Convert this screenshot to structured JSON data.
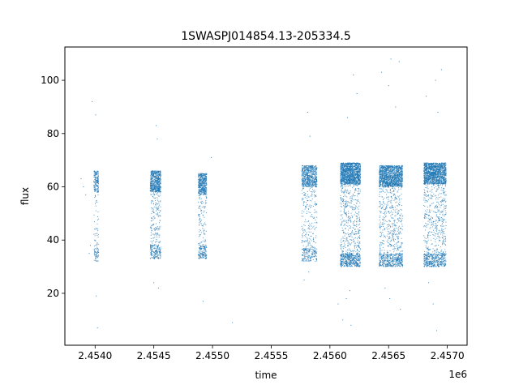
{
  "chart_data": {
    "type": "scatter",
    "title": "1SWASPJ014854.13-205334.5",
    "xlabel": "time",
    "ylabel": "flux",
    "x_offset_label": "1e6",
    "xlim": [
      2453742.5,
      2457168.5
    ],
    "ylim": [
      0.5,
      112.5
    ],
    "x_ticks": [
      2454000,
      2454500,
      2455000,
      2455500,
      2456000,
      2456500,
      2457000
    ],
    "x_tick_labels": [
      "2.4540",
      "2.4545",
      "2.4550",
      "2.4555",
      "2.4560",
      "2.4565",
      "2.4570"
    ],
    "y_ticks": [
      20,
      40,
      60,
      80,
      100
    ],
    "y_tick_labels": [
      "20",
      "40",
      "60",
      "80",
      "100"
    ],
    "grid": false,
    "legend": "none",
    "point_color": "#1f77b4",
    "seasons": [
      {
        "x_start": 2453990,
        "x_end": 2454030,
        "flux_low": 32,
        "flux_high": 66,
        "points": 260
      },
      {
        "x_start": 2454470,
        "x_end": 2454560,
        "flux_low": 33,
        "flux_high": 66,
        "points": 900
      },
      {
        "x_start": 2454880,
        "x_end": 2454950,
        "flux_low": 33,
        "flux_high": 65,
        "points": 700
      },
      {
        "x_start": 2455760,
        "x_end": 2455890,
        "flux_low": 32,
        "flux_high": 68,
        "points": 1000
      },
      {
        "x_start": 2456090,
        "x_end": 2456260,
        "flux_low": 30,
        "flux_high": 69,
        "points": 2200
      },
      {
        "x_start": 2456420,
        "x_end": 2456620,
        "flux_low": 30,
        "flux_high": 68,
        "points": 2200
      },
      {
        "x_start": 2456800,
        "x_end": 2456990,
        "flux_low": 30,
        "flux_high": 69,
        "points": 2200
      }
    ],
    "outliers": [
      {
        "x": 2453880,
        "y": 63
      },
      {
        "x": 2453900,
        "y": 60
      },
      {
        "x": 2453920,
        "y": 57
      },
      {
        "x": 2453950,
        "y": 35
      },
      {
        "x": 2453960,
        "y": 38
      },
      {
        "x": 2453975,
        "y": 92
      },
      {
        "x": 2454005,
        "y": 87
      },
      {
        "x": 2454010,
        "y": 19
      },
      {
        "x": 2454020,
        "y": 7
      },
      {
        "x": 2454520,
        "y": 83
      },
      {
        "x": 2454530,
        "y": 78
      },
      {
        "x": 2454500,
        "y": 24
      },
      {
        "x": 2454540,
        "y": 22
      },
      {
        "x": 2454990,
        "y": 71
      },
      {
        "x": 2454920,
        "y": 17
      },
      {
        "x": 2455170,
        "y": 9
      },
      {
        "x": 2455810,
        "y": 88
      },
      {
        "x": 2455830,
        "y": 79
      },
      {
        "x": 2455820,
        "y": 28
      },
      {
        "x": 2455780,
        "y": 25
      },
      {
        "x": 2456070,
        "y": 16
      },
      {
        "x": 2456110,
        "y": 10
      },
      {
        "x": 2456180,
        "y": 8
      },
      {
        "x": 2456200,
        "y": 102
      },
      {
        "x": 2456230,
        "y": 95
      },
      {
        "x": 2456150,
        "y": 86
      },
      {
        "x": 2456170,
        "y": 21
      },
      {
        "x": 2456140,
        "y": 18
      },
      {
        "x": 2456440,
        "y": 103
      },
      {
        "x": 2456520,
        "y": 108
      },
      {
        "x": 2456590,
        "y": 107
      },
      {
        "x": 2456560,
        "y": 90
      },
      {
        "x": 2456500,
        "y": 98
      },
      {
        "x": 2456470,
        "y": 22
      },
      {
        "x": 2456510,
        "y": 18
      },
      {
        "x": 2456600,
        "y": 14
      },
      {
        "x": 2456820,
        "y": 94
      },
      {
        "x": 2456900,
        "y": 100
      },
      {
        "x": 2456950,
        "y": 104
      },
      {
        "x": 2456920,
        "y": 88
      },
      {
        "x": 2456880,
        "y": 16
      },
      {
        "x": 2456910,
        "y": 6
      },
      {
        "x": 2456840,
        "y": 24
      }
    ]
  }
}
